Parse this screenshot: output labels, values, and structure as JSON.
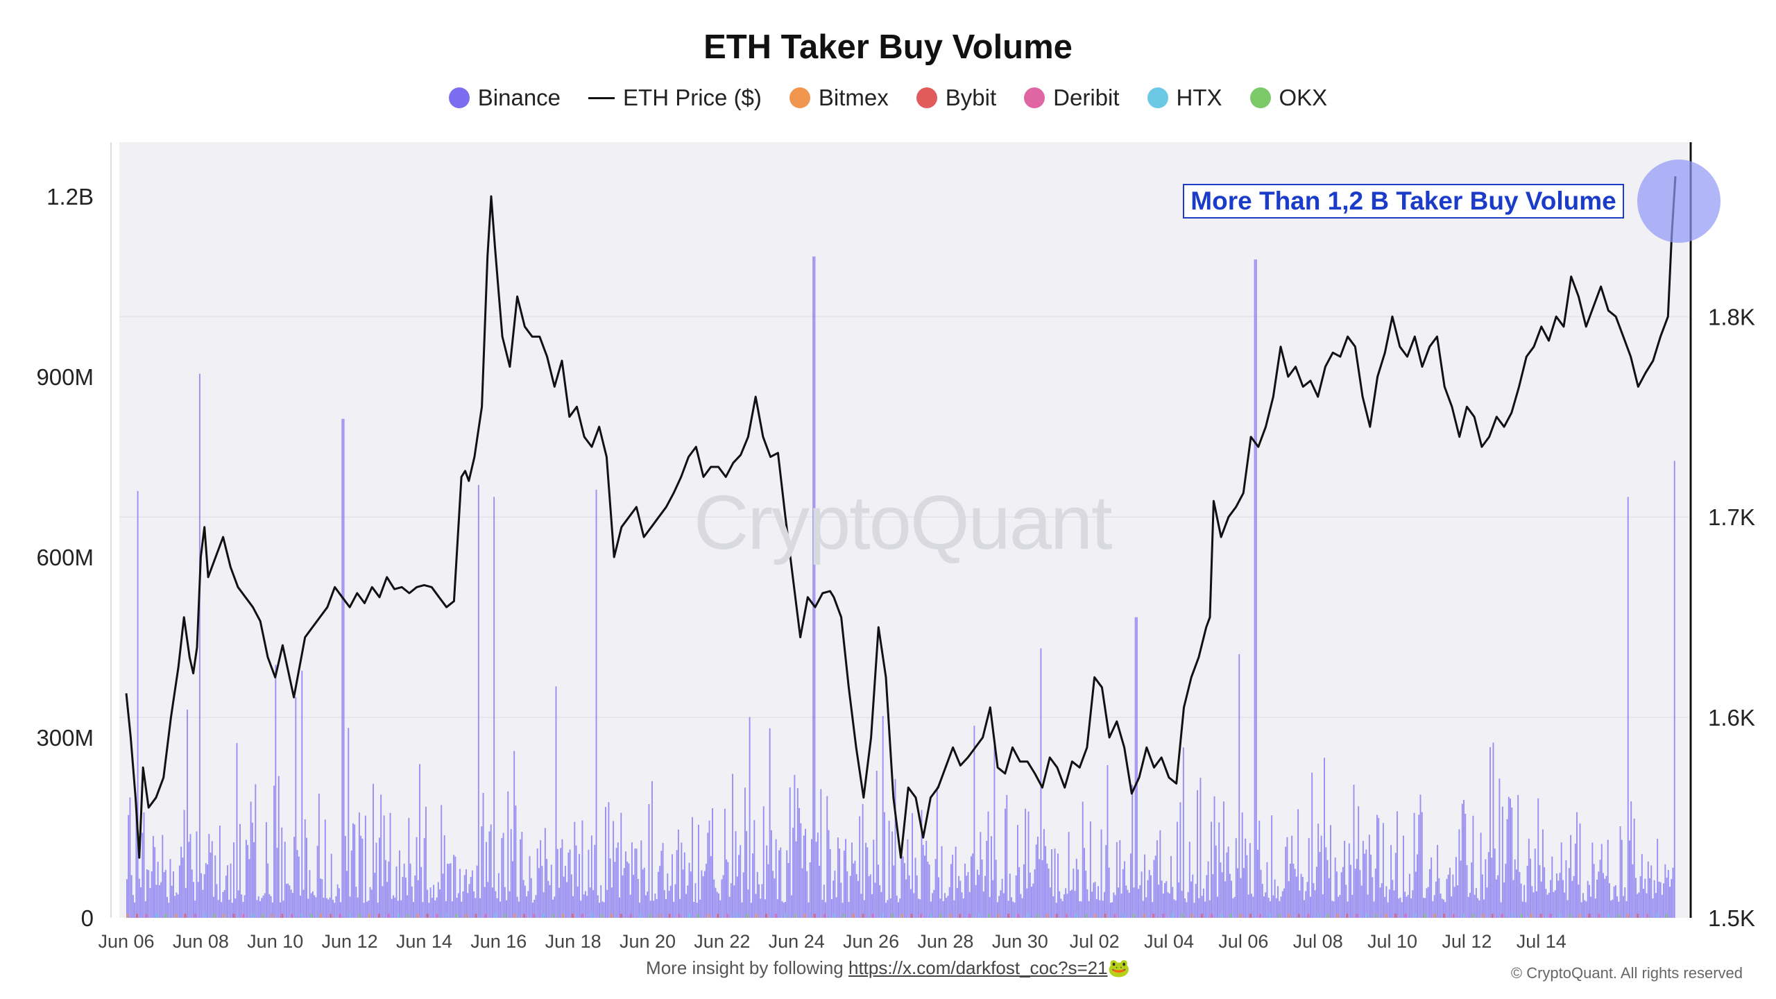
{
  "chart_data": {
    "type": "bar",
    "title": "ETH Taker Buy Volume",
    "legend_placement": "top-center",
    "legend": [
      {
        "name": "Binance",
        "color": "#7b6cf0",
        "kind": "dot"
      },
      {
        "name": "ETH Price ($)",
        "color": "#111111",
        "kind": "line"
      },
      {
        "name": "Bitmex",
        "color": "#f0964f",
        "kind": "dot"
      },
      {
        "name": "Bybit",
        "color": "#e05c5c",
        "kind": "dot"
      },
      {
        "name": "Deribit",
        "color": "#e066a3",
        "kind": "dot"
      },
      {
        "name": "HTX",
        "color": "#6cc9e6",
        "kind": "dot"
      },
      {
        "name": "OKX",
        "color": "#7cc96a",
        "kind": "dot"
      }
    ],
    "x_tick_labels": [
      "Jun 06",
      "Jun 08",
      "Jun 10",
      "Jun 12",
      "Jun 14",
      "Jun 16",
      "Jun 18",
      "Jun 20",
      "Jun 22",
      "Jun 24",
      "Jun 26",
      "Jun 28",
      "Jun 30",
      "Jul 02",
      "Jul 04",
      "Jul 06",
      "Jul 08",
      "Jul 10",
      "Jul 12",
      "Jul 14"
    ],
    "y_left_ticks": [
      "0",
      "300M",
      "600M",
      "900M",
      "1.2B"
    ],
    "y_left_values": [
      0,
      300000000,
      600000000,
      900000000,
      1200000000
    ],
    "y_left_range": [
      0,
      1290000000
    ],
    "y_right_ticks": [
      "1.5K",
      "1.6K",
      "1.7K",
      "1.8K"
    ],
    "y_right_values": [
      1500,
      1600,
      1700,
      1800
    ],
    "y_right_range": [
      1500,
      1887
    ],
    "grid": true,
    "series": [
      {
        "name": "ETH Price ($)",
        "type": "line",
        "axis": "right",
        "color": "#111111",
        "points": [
          [
            0.0,
            1612
          ],
          [
            0.12,
            1590
          ],
          [
            0.25,
            1560
          ],
          [
            0.35,
            1530
          ],
          [
            0.45,
            1575
          ],
          [
            0.6,
            1555
          ],
          [
            0.8,
            1560
          ],
          [
            1.0,
            1570
          ],
          [
            1.2,
            1600
          ],
          [
            1.4,
            1625
          ],
          [
            1.55,
            1650
          ],
          [
            1.7,
            1630
          ],
          [
            1.8,
            1622
          ],
          [
            1.9,
            1635
          ],
          [
            2.0,
            1680
          ],
          [
            2.1,
            1695
          ],
          [
            2.2,
            1670
          ],
          [
            2.4,
            1680
          ],
          [
            2.6,
            1690
          ],
          [
            2.8,
            1675
          ],
          [
            3.0,
            1665
          ],
          [
            3.2,
            1660
          ],
          [
            3.4,
            1655
          ],
          [
            3.6,
            1648
          ],
          [
            3.8,
            1630
          ],
          [
            4.0,
            1620
          ],
          [
            4.2,
            1636
          ],
          [
            4.5,
            1610
          ],
          [
            4.8,
            1640
          ],
          [
            5.0,
            1645
          ],
          [
            5.2,
            1650
          ],
          [
            5.4,
            1655
          ],
          [
            5.6,
            1665
          ],
          [
            5.8,
            1660
          ],
          [
            6.0,
            1655
          ],
          [
            6.2,
            1662
          ],
          [
            6.4,
            1657
          ],
          [
            6.6,
            1665
          ],
          [
            6.8,
            1660
          ],
          [
            7.0,
            1670
          ],
          [
            7.2,
            1664
          ],
          [
            7.4,
            1665
          ],
          [
            7.6,
            1662
          ],
          [
            7.8,
            1665
          ],
          [
            8.0,
            1666
          ],
          [
            8.2,
            1665
          ],
          [
            8.4,
            1660
          ],
          [
            8.6,
            1655
          ],
          [
            8.8,
            1658
          ],
          [
            9.0,
            1720
          ],
          [
            9.1,
            1723
          ],
          [
            9.2,
            1718
          ],
          [
            9.35,
            1730
          ],
          [
            9.55,
            1755
          ],
          [
            9.7,
            1830
          ],
          [
            9.8,
            1860
          ],
          [
            9.9,
            1835
          ],
          [
            10.0,
            1812
          ],
          [
            10.1,
            1790
          ],
          [
            10.3,
            1775
          ],
          [
            10.5,
            1810
          ],
          [
            10.7,
            1795
          ],
          [
            10.9,
            1790
          ],
          [
            11.1,
            1790
          ],
          [
            11.3,
            1780
          ],
          [
            11.5,
            1765
          ],
          [
            11.7,
            1778
          ],
          [
            11.9,
            1750
          ],
          [
            12.1,
            1755
          ],
          [
            12.3,
            1740
          ],
          [
            12.5,
            1735
          ],
          [
            12.7,
            1745
          ],
          [
            12.9,
            1730
          ],
          [
            13.1,
            1680
          ],
          [
            13.3,
            1695
          ],
          [
            13.5,
            1700
          ],
          [
            13.7,
            1705
          ],
          [
            13.9,
            1690
          ],
          [
            14.1,
            1695
          ],
          [
            14.3,
            1700
          ],
          [
            14.5,
            1705
          ],
          [
            14.7,
            1712
          ],
          [
            14.9,
            1720
          ],
          [
            15.1,
            1730
          ],
          [
            15.3,
            1735
          ],
          [
            15.5,
            1720
          ],
          [
            15.7,
            1725
          ],
          [
            15.9,
            1725
          ],
          [
            16.1,
            1720
          ],
          [
            16.3,
            1727
          ],
          [
            16.5,
            1731
          ],
          [
            16.7,
            1740
          ],
          [
            16.9,
            1760
          ],
          [
            17.1,
            1740
          ],
          [
            17.3,
            1730
          ],
          [
            17.5,
            1732
          ],
          [
            17.7,
            1700
          ],
          [
            17.9,
            1670
          ],
          [
            18.1,
            1640
          ],
          [
            18.3,
            1660
          ],
          [
            18.5,
            1655
          ],
          [
            18.7,
            1662
          ],
          [
            18.9,
            1663
          ],
          [
            19.0,
            1660
          ],
          [
            19.2,
            1650
          ],
          [
            19.4,
            1615
          ],
          [
            19.6,
            1585
          ],
          [
            19.8,
            1560
          ],
          [
            20.0,
            1590
          ],
          [
            20.2,
            1645
          ],
          [
            20.4,
            1620
          ],
          [
            20.6,
            1560
          ],
          [
            20.8,
            1530
          ],
          [
            21.0,
            1565
          ],
          [
            21.2,
            1560
          ],
          [
            21.4,
            1540
          ],
          [
            21.6,
            1560
          ],
          [
            21.8,
            1565
          ],
          [
            22.0,
            1575
          ],
          [
            22.2,
            1585
          ],
          [
            22.4,
            1576
          ],
          [
            22.6,
            1580
          ],
          [
            22.8,
            1585
          ],
          [
            23.0,
            1590
          ],
          [
            23.2,
            1605
          ],
          [
            23.4,
            1575
          ],
          [
            23.6,
            1572
          ],
          [
            23.8,
            1585
          ],
          [
            24.0,
            1578
          ],
          [
            24.2,
            1578
          ],
          [
            24.4,
            1572
          ],
          [
            24.6,
            1565
          ],
          [
            24.8,
            1580
          ],
          [
            25.0,
            1575
          ],
          [
            25.2,
            1565
          ],
          [
            25.4,
            1578
          ],
          [
            25.6,
            1575
          ],
          [
            25.8,
            1585
          ],
          [
            26.0,
            1620
          ],
          [
            26.2,
            1615
          ],
          [
            26.4,
            1590
          ],
          [
            26.6,
            1598
          ],
          [
            26.8,
            1585
          ],
          [
            27.0,
            1562
          ],
          [
            27.2,
            1570
          ],
          [
            27.4,
            1585
          ],
          [
            27.6,
            1575
          ],
          [
            27.8,
            1580
          ],
          [
            28.0,
            1570
          ],
          [
            28.2,
            1567
          ],
          [
            28.4,
            1605
          ],
          [
            28.6,
            1620
          ],
          [
            28.8,
            1630
          ],
          [
            29.0,
            1645
          ],
          [
            29.1,
            1650
          ],
          [
            29.2,
            1708
          ],
          [
            29.4,
            1690
          ],
          [
            29.6,
            1700
          ],
          [
            29.8,
            1705
          ],
          [
            30.0,
            1712
          ],
          [
            30.2,
            1740
          ],
          [
            30.4,
            1735
          ],
          [
            30.6,
            1745
          ],
          [
            30.8,
            1760
          ],
          [
            31.0,
            1785
          ],
          [
            31.2,
            1770
          ],
          [
            31.4,
            1775
          ],
          [
            31.6,
            1765
          ],
          [
            31.8,
            1768
          ],
          [
            32.0,
            1760
          ],
          [
            32.2,
            1775
          ],
          [
            32.4,
            1782
          ],
          [
            32.6,
            1780
          ],
          [
            32.8,
            1790
          ],
          [
            33.0,
            1785
          ],
          [
            33.2,
            1760
          ],
          [
            33.4,
            1745
          ],
          [
            33.6,
            1770
          ],
          [
            33.8,
            1782
          ],
          [
            34.0,
            1800
          ],
          [
            34.2,
            1785
          ],
          [
            34.4,
            1780
          ],
          [
            34.6,
            1790
          ],
          [
            34.8,
            1775
          ],
          [
            35.0,
            1785
          ],
          [
            35.2,
            1790
          ],
          [
            35.4,
            1765
          ],
          [
            35.6,
            1755
          ],
          [
            35.8,
            1740
          ],
          [
            36.0,
            1755
          ],
          [
            36.2,
            1750
          ],
          [
            36.4,
            1735
          ],
          [
            36.6,
            1740
          ],
          [
            36.8,
            1750
          ],
          [
            37.0,
            1745
          ],
          [
            37.2,
            1752
          ],
          [
            37.4,
            1765
          ],
          [
            37.6,
            1780
          ],
          [
            37.8,
            1785
          ],
          [
            38.0,
            1795
          ],
          [
            38.2,
            1788
          ],
          [
            38.4,
            1800
          ],
          [
            38.6,
            1795
          ],
          [
            38.8,
            1820
          ],
          [
            39.0,
            1810
          ],
          [
            39.2,
            1795
          ],
          [
            39.4,
            1805
          ],
          [
            39.6,
            1815
          ],
          [
            39.8,
            1803
          ],
          [
            40.0,
            1800
          ],
          [
            40.2,
            1790
          ],
          [
            40.4,
            1780
          ],
          [
            40.6,
            1765
          ],
          [
            40.8,
            1772
          ],
          [
            41.0,
            1778
          ],
          [
            41.2,
            1790
          ],
          [
            41.4,
            1800
          ],
          [
            41.5,
            1840
          ],
          [
            41.6,
            1870
          ]
        ]
      },
      {
        "name": "Binance",
        "type": "bar",
        "axis": "left",
        "color": "#7b6cf0",
        "peaks": [
          [
            0.3,
            710000000
          ],
          [
            1.95,
            905000000
          ],
          [
            5.8,
            830000000
          ],
          [
            9.45,
            720000000
          ],
          [
            9.85,
            700000000
          ],
          [
            12.6,
            712000000
          ],
          [
            18.45,
            1100000000
          ],
          [
            27.1,
            500000000
          ],
          [
            30.3,
            1095000000
          ],
          [
            40.3,
            700000000
          ],
          [
            41.55,
            760000000
          ]
        ]
      }
    ],
    "annotation": {
      "text": "More Than 1,2 B Taker Buy Volume",
      "color": "#1a3cc9",
      "highlight_color": "#8f97f5"
    },
    "watermark": "CryptoQuant",
    "footer_text": "More insight by following",
    "footer_link": "https://x.com/darkfost_coc?s=21",
    "footer_emoji": "🐸",
    "copyright": "© CryptoQuant. All rights reserved"
  }
}
